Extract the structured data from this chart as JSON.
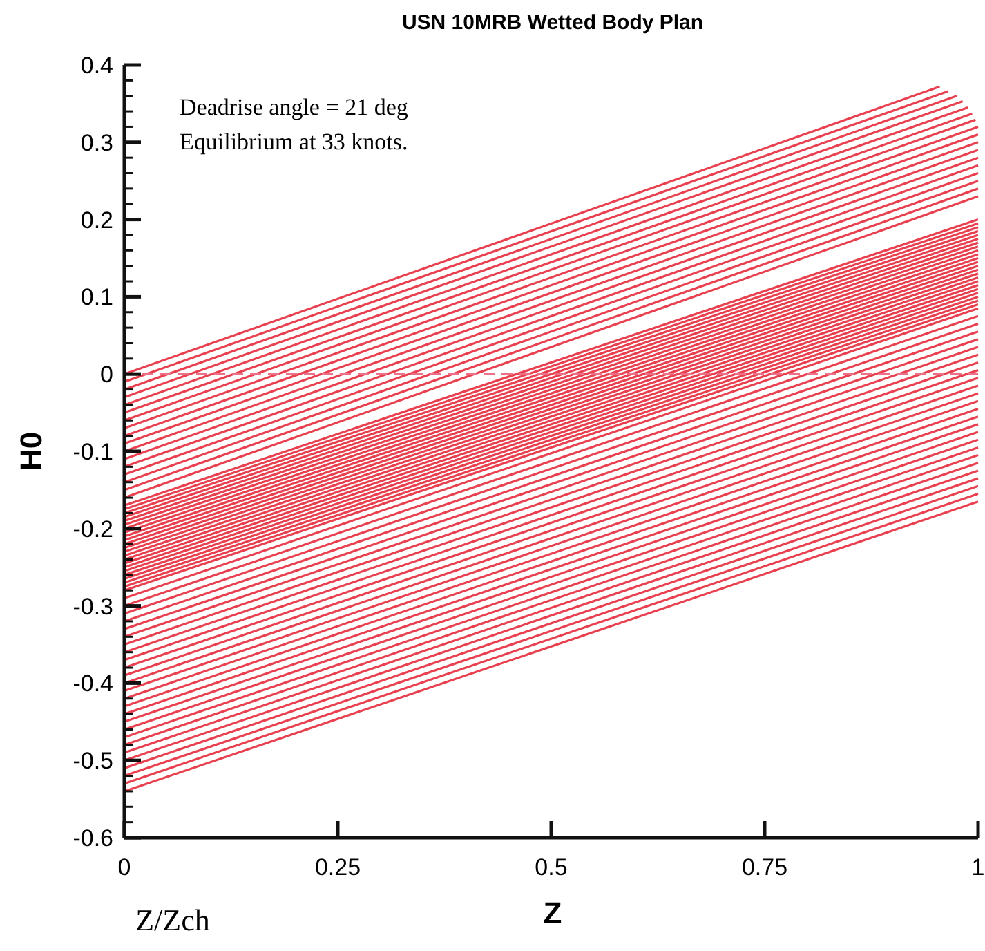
{
  "chart_data": {
    "type": "line",
    "title": "USN 10MRB Wetted Body Plan",
    "xlabel": "Z",
    "ylabel": "H0",
    "annotations": [
      "Deadrise angle = 21 deg",
      "Equilibrium at 33 knots.",
      "Z/Zch"
    ],
    "xlim": [
      0,
      1
    ],
    "xticks": [
      0,
      0.25,
      0.5,
      0.75,
      1
    ],
    "ylim": [
      -0.6,
      0.4
    ],
    "yticks": [
      -0.6,
      {
        "value": -0.58,
        "label": null
      },
      {
        "value": -0.56,
        "label": null
      },
      {
        "value": -0.54,
        "label": null
      },
      {
        "value": -0.52,
        "label": null
      },
      -0.5,
      {
        "value": -0.48,
        "label": null
      },
      {
        "value": -0.46,
        "label": null
      },
      {
        "value": -0.44,
        "label": null
      },
      {
        "value": -0.42,
        "label": null
      },
      -0.4,
      {
        "value": -0.38,
        "label": null
      },
      {
        "value": -0.36,
        "label": null
      },
      {
        "value": -0.34,
        "label": null
      },
      {
        "value": -0.32,
        "label": null
      },
      -0.3,
      {
        "value": -0.28,
        "label": null
      },
      {
        "value": -0.26,
        "label": null
      },
      {
        "value": -0.24,
        "label": null
      },
      {
        "value": -0.22,
        "label": null
      },
      -0.2,
      {
        "value": -0.18,
        "label": null
      },
      {
        "value": -0.16,
        "label": null
      },
      {
        "value": -0.14,
        "label": null
      },
      {
        "value": -0.12,
        "label": null
      },
      -0.1,
      {
        "value": -0.08,
        "label": null
      },
      {
        "value": -0.06,
        "label": null
      },
      {
        "value": -0.04,
        "label": null
      },
      {
        "value": -0.02,
        "label": null
      },
      0,
      {
        "value": 0.02,
        "label": null
      },
      {
        "value": 0.04,
        "label": null
      },
      {
        "value": 0.06,
        "label": null
      },
      {
        "value": 0.08,
        "label": null
      },
      0.1,
      {
        "value": 0.12,
        "label": null
      },
      {
        "value": 0.14,
        "label": null
      },
      {
        "value": 0.16,
        "label": null
      },
      {
        "value": 0.18,
        "label": null
      },
      0.2,
      {
        "value": 0.22,
        "label": null
      },
      {
        "value": 0.24,
        "label": null
      },
      {
        "value": 0.26,
        "label": null
      },
      {
        "value": 0.28,
        "label": null
      },
      0.3,
      {
        "value": 0.32,
        "label": null
      },
      {
        "value": 0.34,
        "label": null
      },
      {
        "value": 0.36,
        "label": null
      },
      {
        "value": 0.38,
        "label": null
      },
      0.4
    ],
    "marker": "none",
    "line_style": "solid",
    "ref_lines": [
      {
        "axis": "y",
        "value": 0,
        "color": "#ec7088",
        "line_style": "dashed"
      }
    ],
    "series": [
      {
        "color": "#e8404f",
        "x": [
          0,
          0.955
        ],
        "values": [
          0,
          0.372
        ]
      },
      {
        "color": "#e8404f",
        "x": [
          0,
          0.965
        ],
        "values": [
          -0.01,
          0.366
        ]
      },
      {
        "color": "#e8404f",
        "x": [
          0,
          0.975
        ],
        "values": [
          -0.02,
          0.36
        ]
      },
      {
        "color": "#e8404f",
        "x": [
          0,
          0.982
        ],
        "values": [
          -0.03,
          0.353
        ]
      },
      {
        "color": "#e8404f",
        "x": [
          0,
          0.988
        ],
        "values": [
          -0.04,
          0.345
        ]
      },
      {
        "color": "#e8404f",
        "x": [
          0,
          0.993
        ],
        "values": [
          -0.05,
          0.337
        ]
      },
      {
        "color": "#e8404f",
        "x": [
          0,
          0.997
        ],
        "values": [
          -0.06,
          0.329
        ]
      },
      {
        "color": "#e8404f",
        "x": [
          0,
          1
        ],
        "values": [
          -0.07,
          0.32
        ]
      },
      {
        "color": "#e8404f",
        "x": [
          0,
          1
        ],
        "values": [
          -0.08,
          0.31
        ]
      },
      {
        "color": "#e8404f",
        "x": [
          0,
          1
        ],
        "values": [
          -0.09,
          0.3
        ]
      },
      {
        "color": "#e8404f",
        "x": [
          0,
          1
        ],
        "values": [
          -0.1,
          0.29
        ]
      },
      {
        "color": "#e8404f",
        "x": [
          0,
          1
        ],
        "values": [
          -0.11,
          0.28
        ]
      },
      {
        "color": "#e8404f",
        "x": [
          0,
          1
        ],
        "values": [
          -0.12,
          0.27
        ]
      },
      {
        "color": "#e8404f",
        "x": [
          0,
          1
        ],
        "values": [
          -0.13,
          0.26
        ]
      },
      {
        "color": "#e8404f",
        "x": [
          0,
          1
        ],
        "values": [
          -0.14,
          0.25
        ]
      },
      {
        "color": "#e8404f",
        "x": [
          0,
          1
        ],
        "values": [
          -0.15,
          0.24
        ]
      },
      {
        "color": "#e8404f",
        "x": [
          0,
          1
        ],
        "values": [
          -0.16,
          0.23
        ]
      },
      {
        "color": "#e8404f",
        "x": [
          0,
          1
        ],
        "values": [
          -0.17,
          0.2
        ]
      },
      {
        "color": "#e8404f",
        "x": [
          0,
          1
        ],
        "values": [
          -0.175,
          0.195
        ]
      },
      {
        "color": "#e8404f",
        "x": [
          0,
          1
        ],
        "values": [
          -0.18,
          0.19
        ]
      },
      {
        "color": "#e8404f",
        "x": [
          0,
          1
        ],
        "values": [
          -0.185,
          0.185
        ]
      },
      {
        "color": "#e8404f",
        "x": [
          0,
          1
        ],
        "values": [
          -0.19,
          0.18
        ]
      },
      {
        "color": "#e8404f",
        "x": [
          0,
          1
        ],
        "values": [
          -0.195,
          0.175
        ]
      },
      {
        "color": "#e8404f",
        "x": [
          0,
          1
        ],
        "values": [
          -0.2,
          0.17
        ]
      },
      {
        "color": "#e8404f",
        "x": [
          0,
          1
        ],
        "values": [
          -0.205,
          0.165
        ]
      },
      {
        "color": "#e8404f",
        "x": [
          0,
          1
        ],
        "values": [
          -0.21,
          0.16
        ]
      },
      {
        "color": "#e8404f",
        "x": [
          0,
          1
        ],
        "values": [
          -0.215,
          0.155
        ]
      },
      {
        "color": "#e8404f",
        "x": [
          0,
          1
        ],
        "values": [
          -0.22,
          0.15
        ]
      },
      {
        "color": "#e8404f",
        "x": [
          0,
          1
        ],
        "values": [
          -0.225,
          0.145
        ]
      },
      {
        "color": "#e8404f",
        "x": [
          0,
          1
        ],
        "values": [
          -0.23,
          0.14
        ]
      },
      {
        "color": "#e8404f",
        "x": [
          0,
          1
        ],
        "values": [
          -0.235,
          0.135
        ]
      },
      {
        "color": "#e8404f",
        "x": [
          0,
          1
        ],
        "values": [
          -0.24,
          0.13
        ]
      },
      {
        "color": "#e8404f",
        "x": [
          0,
          1
        ],
        "values": [
          -0.245,
          0.125
        ]
      },
      {
        "color": "#e8404f",
        "x": [
          0,
          1
        ],
        "values": [
          -0.25,
          0.12
        ]
      },
      {
        "color": "#e8404f",
        "x": [
          0,
          1
        ],
        "values": [
          -0.255,
          0.115
        ]
      },
      {
        "color": "#e8404f",
        "x": [
          0,
          1
        ],
        "values": [
          -0.26,
          0.11
        ]
      },
      {
        "color": "#e8404f",
        "x": [
          0,
          1
        ],
        "values": [
          -0.265,
          0.105
        ]
      },
      {
        "color": "#e8404f",
        "x": [
          0,
          1
        ],
        "values": [
          -0.27,
          0.1
        ]
      },
      {
        "color": "#e8404f",
        "x": [
          0,
          1
        ],
        "values": [
          -0.275,
          0.095
        ]
      },
      {
        "color": "#e8404f",
        "x": [
          0,
          1
        ],
        "values": [
          -0.28,
          0.09
        ]
      },
      {
        "color": "#e8404f",
        "x": [
          0,
          1
        ],
        "values": [
          -0.29,
          0.085
        ]
      },
      {
        "color": "#e8404f",
        "x": [
          0,
          1
        ],
        "values": [
          -0.3,
          0.075
        ]
      },
      {
        "color": "#e8404f",
        "x": [
          0,
          1
        ],
        "values": [
          -0.31,
          0.065
        ]
      },
      {
        "color": "#e8404f",
        "x": [
          0,
          1
        ],
        "values": [
          -0.32,
          0.055
        ]
      },
      {
        "color": "#e8404f",
        "x": [
          0,
          1
        ],
        "values": [
          -0.33,
          0.045
        ]
      },
      {
        "color": "#e8404f",
        "x": [
          0,
          1
        ],
        "values": [
          -0.34,
          0.035
        ]
      },
      {
        "color": "#e8404f",
        "x": [
          0,
          1
        ],
        "values": [
          -0.35,
          0.025
        ]
      },
      {
        "color": "#e8404f",
        "x": [
          0,
          1
        ],
        "values": [
          -0.36,
          0.015
        ]
      },
      {
        "color": "#e8404f",
        "x": [
          0,
          1
        ],
        "values": [
          -0.37,
          0.005
        ]
      },
      {
        "color": "#e8404f",
        "x": [
          0,
          1
        ],
        "values": [
          -0.38,
          -0.005
        ]
      },
      {
        "color": "#e8404f",
        "x": [
          0,
          1
        ],
        "values": [
          -0.39,
          -0.015
        ]
      },
      {
        "color": "#e8404f",
        "x": [
          0,
          1
        ],
        "values": [
          -0.4,
          -0.025
        ]
      },
      {
        "color": "#e8404f",
        "x": [
          0,
          1
        ],
        "values": [
          -0.41,
          -0.035
        ]
      },
      {
        "color": "#e8404f",
        "x": [
          0,
          1
        ],
        "values": [
          -0.42,
          -0.045
        ]
      },
      {
        "color": "#e8404f",
        "x": [
          0,
          1
        ],
        "values": [
          -0.43,
          -0.055
        ]
      },
      {
        "color": "#e8404f",
        "x": [
          0,
          1
        ],
        "values": [
          -0.44,
          -0.065
        ]
      },
      {
        "color": "#e8404f",
        "x": [
          0,
          1
        ],
        "values": [
          -0.45,
          -0.075
        ]
      },
      {
        "color": "#e8404f",
        "x": [
          0,
          1
        ],
        "values": [
          -0.46,
          -0.085
        ]
      },
      {
        "color": "#e8404f",
        "x": [
          0,
          1
        ],
        "values": [
          -0.47,
          -0.095
        ]
      },
      {
        "color": "#e8404f",
        "x": [
          0,
          1
        ],
        "values": [
          -0.48,
          -0.105
        ]
      },
      {
        "color": "#e8404f",
        "x": [
          0,
          1
        ],
        "values": [
          -0.49,
          -0.115
        ]
      },
      {
        "color": "#e8404f",
        "x": [
          0,
          1
        ],
        "values": [
          -0.5,
          -0.125
        ]
      },
      {
        "color": "#e8404f",
        "x": [
          0,
          1
        ],
        "values": [
          -0.51,
          -0.135
        ]
      },
      {
        "color": "#e8404f",
        "x": [
          0,
          1
        ],
        "values": [
          -0.52,
          -0.145
        ]
      },
      {
        "color": "#e8404f",
        "x": [
          0,
          1
        ],
        "values": [
          -0.53,
          -0.155
        ]
      },
      {
        "color": "#e8404f",
        "x": [
          0,
          1
        ],
        "values": [
          -0.54,
          -0.165
        ]
      }
    ]
  }
}
